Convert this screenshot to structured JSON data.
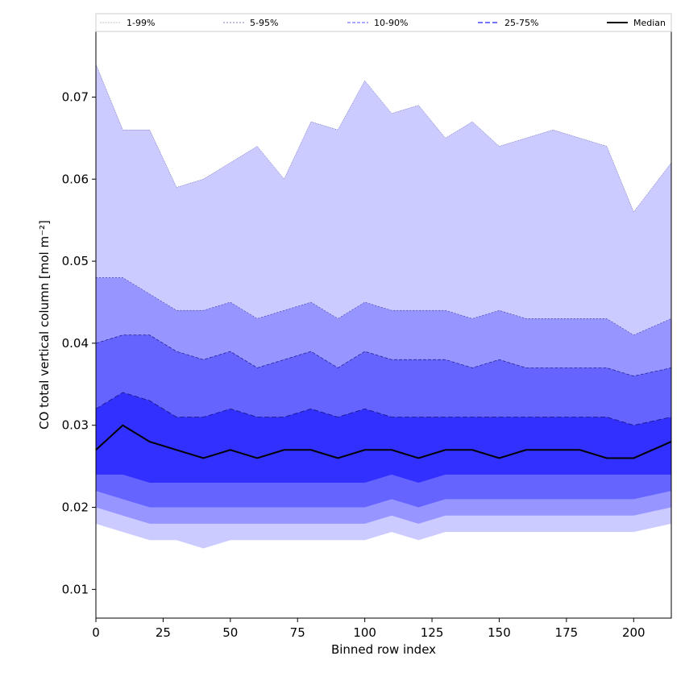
{
  "chart_data": {
    "type": "area",
    "xlabel": "Binned row index",
    "ylabel": "CO total vertical column [mol m⁻²]",
    "xlim": [
      0,
      214
    ],
    "ylim": [
      0.0065,
      0.078
    ],
    "x_ticks": [
      0,
      25,
      50,
      75,
      100,
      125,
      150,
      175,
      200
    ],
    "y_ticks": [
      0.01,
      0.02,
      0.03,
      0.04,
      0.05,
      0.06,
      0.07
    ],
    "x_tick_labels": [
      "0",
      "25",
      "50",
      "75",
      "100",
      "125",
      "150",
      "175",
      "200"
    ],
    "y_tick_labels": [
      "0.01",
      "0.02",
      "0.03",
      "0.04",
      "0.05",
      "0.06",
      "0.07"
    ],
    "legend_position": "top",
    "series_style": {
      "fill_colors": [
        "#cccbff",
        "#9795ff",
        "#6664ff",
        "#3130ff"
      ],
      "edge_color": "#1a1a8c",
      "median_color": "#000000"
    },
    "x": [
      0,
      10,
      20,
      30,
      40,
      50,
      60,
      70,
      80,
      90,
      100,
      110,
      120,
      130,
      140,
      150,
      160,
      170,
      180,
      190,
      200,
      214
    ],
    "series": [
      {
        "name": "1-99%",
        "lower": [
          0.018,
          0.017,
          0.016,
          0.016,
          0.015,
          0.016,
          0.016,
          0.016,
          0.016,
          0.016,
          0.016,
          0.017,
          0.016,
          0.017,
          0.017,
          0.017,
          0.017,
          0.017,
          0.017,
          0.017,
          0.017,
          0.018
        ],
        "upper": [
          0.074,
          0.066,
          0.066,
          0.059,
          0.06,
          0.062,
          0.064,
          0.06,
          0.067,
          0.066,
          0.072,
          0.068,
          0.069,
          0.065,
          0.067,
          0.064,
          0.065,
          0.066,
          0.065,
          0.064,
          0.056,
          0.062
        ]
      },
      {
        "name": "5-95%",
        "lower": [
          0.02,
          0.019,
          0.018,
          0.018,
          0.018,
          0.018,
          0.018,
          0.018,
          0.018,
          0.018,
          0.018,
          0.019,
          0.018,
          0.019,
          0.019,
          0.019,
          0.019,
          0.019,
          0.019,
          0.019,
          0.019,
          0.02
        ],
        "upper": [
          0.048,
          0.048,
          0.046,
          0.044,
          0.044,
          0.045,
          0.043,
          0.044,
          0.045,
          0.043,
          0.045,
          0.044,
          0.044,
          0.044,
          0.043,
          0.044,
          0.043,
          0.043,
          0.043,
          0.043,
          0.041,
          0.043
        ]
      },
      {
        "name": "10-90%",
        "lower": [
          0.022,
          0.021,
          0.02,
          0.02,
          0.02,
          0.02,
          0.02,
          0.02,
          0.02,
          0.02,
          0.02,
          0.021,
          0.02,
          0.021,
          0.021,
          0.021,
          0.021,
          0.021,
          0.021,
          0.021,
          0.021,
          0.022
        ],
        "upper": [
          0.04,
          0.041,
          0.041,
          0.039,
          0.038,
          0.039,
          0.037,
          0.038,
          0.039,
          0.037,
          0.039,
          0.038,
          0.038,
          0.038,
          0.037,
          0.038,
          0.037,
          0.037,
          0.037,
          0.037,
          0.036,
          0.037
        ]
      },
      {
        "name": "25-75%",
        "lower": [
          0.024,
          0.024,
          0.023,
          0.023,
          0.023,
          0.023,
          0.023,
          0.023,
          0.023,
          0.023,
          0.023,
          0.024,
          0.023,
          0.024,
          0.024,
          0.024,
          0.024,
          0.024,
          0.024,
          0.024,
          0.024,
          0.024
        ],
        "upper": [
          0.032,
          0.034,
          0.033,
          0.031,
          0.031,
          0.032,
          0.031,
          0.031,
          0.032,
          0.031,
          0.032,
          0.031,
          0.031,
          0.031,
          0.031,
          0.031,
          0.031,
          0.031,
          0.031,
          0.031,
          0.03,
          0.031
        ]
      },
      {
        "name": "Median",
        "values": [
          0.027,
          0.03,
          0.028,
          0.027,
          0.026,
          0.027,
          0.026,
          0.027,
          0.027,
          0.026,
          0.027,
          0.027,
          0.026,
          0.027,
          0.027,
          0.026,
          0.027,
          0.027,
          0.027,
          0.026,
          0.026,
          0.028
        ]
      }
    ]
  }
}
